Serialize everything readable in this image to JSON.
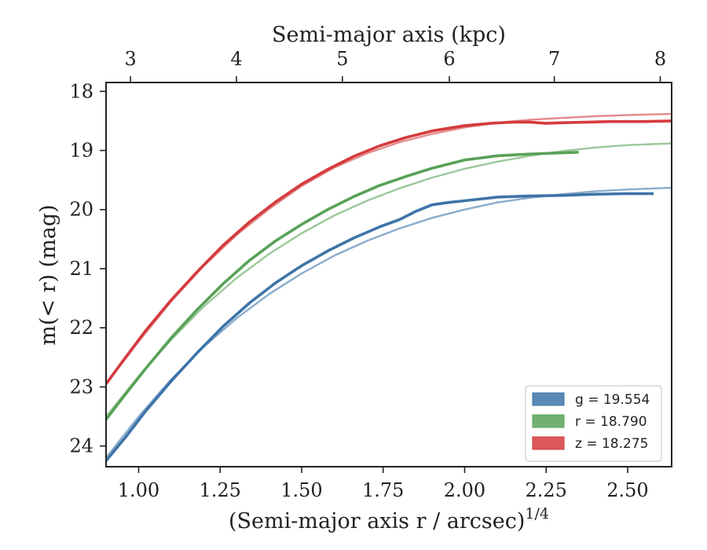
{
  "chart_data": {
    "type": "line",
    "title": "",
    "xlabel": "(Semi-major axis r / arcsec)",
    "xlabel_superscript": "1/4",
    "top_xlabel": "Semi-major axis (kpc)",
    "ylabel": "m(< r) (mag)",
    "xlim": [
      0.9,
      2.635
    ],
    "ylim": [
      24.35,
      17.85
    ],
    "y_inverted": true,
    "x_ticks": [
      {
        "value": 1.0,
        "label": "1.00"
      },
      {
        "value": 1.25,
        "label": "1.25"
      },
      {
        "value": 1.5,
        "label": "1.50"
      },
      {
        "value": 1.75,
        "label": "1.75"
      },
      {
        "value": 2.0,
        "label": "2.00"
      },
      {
        "value": 2.25,
        "label": "2.25"
      },
      {
        "value": 2.5,
        "label": "2.50"
      }
    ],
    "y_ticks": [
      {
        "value": 18,
        "label": "18"
      },
      {
        "value": 19,
        "label": "19"
      },
      {
        "value": 20,
        "label": "20"
      },
      {
        "value": 21,
        "label": "21"
      },
      {
        "value": 22,
        "label": "22"
      },
      {
        "value": 23,
        "label": "23"
      },
      {
        "value": 24,
        "label": "24"
      }
    ],
    "top_x_ticks": [
      {
        "value": 0.975,
        "label": "3"
      },
      {
        "value": 1.3,
        "label": "4"
      },
      {
        "value": 1.625,
        "label": "5"
      },
      {
        "value": 1.953,
        "label": "6"
      },
      {
        "value": 2.275,
        "label": "7"
      },
      {
        "value": 2.6,
        "label": "8"
      }
    ],
    "legend_position": "lower right",
    "grid": false,
    "series": [
      {
        "name": "g",
        "legend_label": "g = 19.554",
        "color": "#3e74a8",
        "data": {
          "x": [
            0.9,
            0.96,
            1.02,
            1.1,
            1.18,
            1.26,
            1.34,
            1.42,
            1.5,
            1.58,
            1.66,
            1.74,
            1.8,
            1.85,
            1.9,
            1.95,
            2.0,
            2.1,
            2.2,
            2.3,
            2.4,
            2.5,
            2.58
          ],
          "y": [
            24.25,
            23.85,
            23.42,
            22.9,
            22.42,
            21.97,
            21.58,
            21.24,
            20.95,
            20.7,
            20.48,
            20.29,
            20.17,
            20.03,
            19.92,
            19.88,
            19.85,
            19.79,
            19.77,
            19.76,
            19.74,
            19.73,
            19.73
          ]
        },
        "model": {
          "x": [
            0.9,
            1.0,
            1.1,
            1.2,
            1.3,
            1.4,
            1.5,
            1.6,
            1.7,
            1.8,
            1.9,
            2.0,
            2.1,
            2.2,
            2.3,
            2.4,
            2.5,
            2.635
          ],
          "y": [
            24.2,
            23.5,
            22.87,
            22.32,
            21.84,
            21.43,
            21.08,
            20.78,
            20.53,
            20.32,
            20.14,
            20.0,
            19.88,
            19.8,
            19.74,
            19.69,
            19.66,
            19.63
          ]
        }
      },
      {
        "name": "r",
        "legend_label": "r = 18.790",
        "color": "#58a257",
        "data": {
          "x": [
            0.9,
            0.96,
            1.02,
            1.1,
            1.18,
            1.26,
            1.34,
            1.42,
            1.5,
            1.58,
            1.66,
            1.74,
            1.82,
            1.9,
            2.0,
            2.1,
            2.2,
            2.3,
            2.35
          ],
          "y": [
            23.55,
            23.12,
            22.7,
            22.17,
            21.69,
            21.25,
            20.86,
            20.53,
            20.25,
            20.0,
            19.78,
            19.59,
            19.44,
            19.3,
            19.16,
            19.09,
            19.06,
            19.04,
            19.03
          ]
        },
        "model": {
          "x": [
            0.9,
            1.0,
            1.1,
            1.2,
            1.3,
            1.4,
            1.5,
            1.6,
            1.7,
            1.8,
            1.9,
            2.0,
            2.1,
            2.2,
            2.3,
            2.4,
            2.5,
            2.635
          ],
          "y": [
            23.5,
            22.82,
            22.2,
            21.64,
            21.16,
            20.75,
            20.4,
            20.1,
            19.85,
            19.64,
            19.46,
            19.31,
            19.19,
            19.09,
            19.01,
            18.95,
            18.91,
            18.88
          ]
        }
      },
      {
        "name": "z",
        "legend_label": "z = 18.275",
        "color": "#d43b3d",
        "data": {
          "x": [
            0.9,
            0.96,
            1.02,
            1.1,
            1.18,
            1.26,
            1.34,
            1.42,
            1.5,
            1.58,
            1.66,
            1.74,
            1.82,
            1.9,
            2.0,
            2.08,
            2.15,
            2.2,
            2.25,
            2.3,
            2.38,
            2.45,
            2.55,
            2.635
          ],
          "y": [
            22.95,
            22.5,
            22.06,
            21.53,
            21.05,
            20.6,
            20.21,
            19.87,
            19.57,
            19.32,
            19.1,
            18.92,
            18.78,
            18.67,
            18.58,
            18.54,
            18.52,
            18.52,
            18.54,
            18.53,
            18.52,
            18.51,
            18.51,
            18.5
          ]
        },
        "model": {
          "x": [
            0.9,
            1.0,
            1.1,
            1.2,
            1.3,
            1.4,
            1.5,
            1.6,
            1.7,
            1.8,
            1.9,
            2.0,
            2.1,
            2.2,
            2.3,
            2.4,
            2.5,
            2.635
          ],
          "y": [
            22.95,
            22.23,
            21.55,
            20.95,
            20.43,
            19.99,
            19.6,
            19.29,
            19.05,
            18.86,
            18.72,
            18.61,
            18.53,
            18.48,
            18.45,
            18.42,
            18.4,
            18.38
          ]
        }
      }
    ]
  }
}
